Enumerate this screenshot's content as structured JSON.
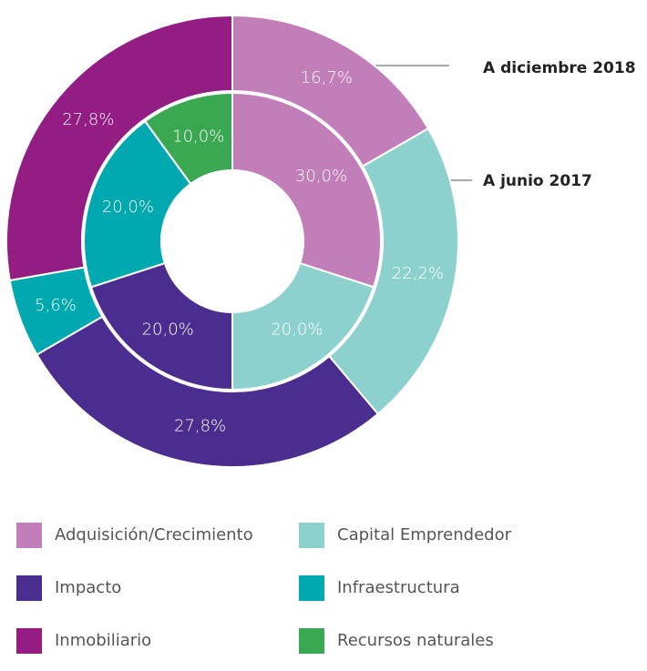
{
  "chart_data": {
    "type": "donut",
    "categories": [
      "Adquisición/Crecimiento",
      "Capital Emprendedor",
      "Impacto",
      "Infraestructura",
      "Inmobiliario",
      "Recursos naturales"
    ],
    "colors": [
      "#c27eb8",
      "#8dd1cf",
      "#4b2d8f",
      "#00a9b0",
      "#931d83",
      "#3aa851"
    ],
    "series": [
      {
        "name": "A diciembre 2018",
        "values": [
          16.7,
          22.2,
          27.8,
          5.6,
          27.8,
          0
        ],
        "value_labels": [
          "16,7%",
          "22,2%",
          "27,8%",
          "5,6%",
          "27,8%",
          null
        ]
      },
      {
        "name": "A junio 2017",
        "values": [
          30,
          20,
          20,
          20,
          0,
          10
        ],
        "value_labels": [
          "30,0%",
          "20,0%",
          "20,0%",
          "20,0%",
          null,
          "10,0%"
        ]
      }
    ]
  }
}
